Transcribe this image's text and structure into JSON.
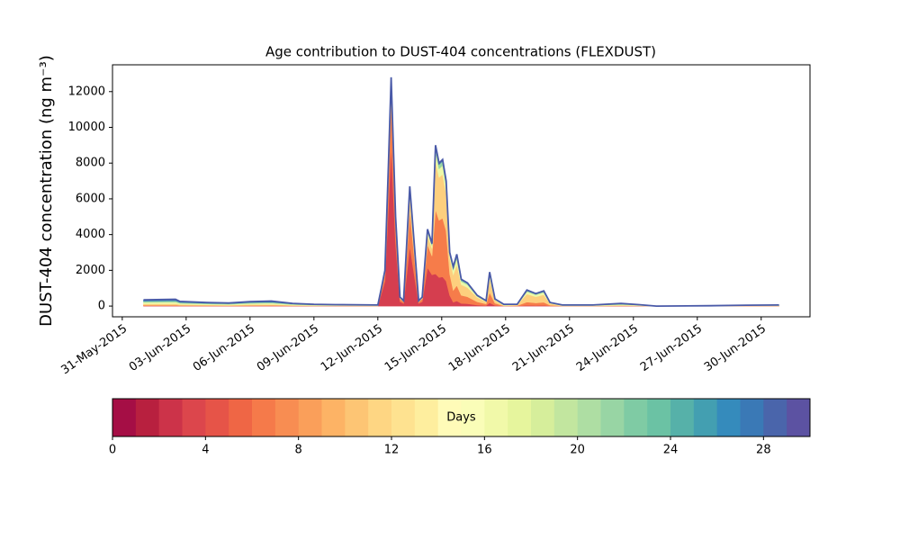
{
  "chart_data": {
    "type": "stacked_area",
    "title": "Age contribution to DUST-404 concentrations (FLEXDUST)",
    "y_label": "DUST-404 concentration (ng m⁻³)",
    "x": [
      "2015-06-01T00:00",
      "2015-06-02T12:00",
      "2015-06-02T17:00",
      "2015-06-04T00:00",
      "2015-06-05T00:00",
      "2015-06-06T00:00",
      "2015-06-07T00:00",
      "2015-06-08T00:00",
      "2015-06-09T00:00",
      "2015-06-10T00:00",
      "2015-06-12T00:00",
      "2015-06-12T04:00",
      "2015-06-12T08:00",
      "2015-06-12T12:00",
      "2015-06-12T15:00",
      "2015-06-12T20:00",
      "2015-06-13T01:00",
      "2015-06-13T05:00",
      "2015-06-13T08:00",
      "2015-06-13T12:00",
      "2015-06-13T17:00",
      "2015-06-13T22:00",
      "2015-06-14T02:00",
      "2015-06-14T08:00",
      "2015-06-14T13:00",
      "2015-06-14T17:00",
      "2015-06-14T21:00",
      "2015-06-15T01:00",
      "2015-06-15T05:00",
      "2015-06-15T09:00",
      "2015-06-15T13:00",
      "2015-06-15T17:00",
      "2015-06-15T22:00",
      "2015-06-16T05:00",
      "2015-06-16T16:00",
      "2015-06-17T02:00",
      "2015-06-17T06:00",
      "2015-06-17T12:00",
      "2015-06-17T22:00",
      "2015-06-18T13:00",
      "2015-06-19T00:00",
      "2015-06-19T10:00",
      "2015-06-19T19:00",
      "2015-06-20T02:00",
      "2015-06-20T16:00",
      "2015-06-22T02:00",
      "2015-06-23T10:00",
      "2015-06-24T06:00",
      "2015-06-25T02:00",
      "2015-06-27T14:00",
      "2015-06-29T07:00",
      "2015-06-30T20:00"
    ],
    "series": [
      {
        "color": "#d53e4f",
        "values": [
          18,
          19,
          13,
          10,
          8,
          12,
          14,
          8,
          5,
          4,
          3,
          700,
          1400,
          5600,
          8960,
          3500,
          250,
          150,
          1500,
          3350,
          1750,
          150,
          250,
          2150,
          1750,
          1800,
          1600,
          1640,
          1400,
          600,
          220,
          290,
          150,
          130,
          60,
          30,
          190,
          40,
          5,
          5,
          45,
          35,
          43,
          10,
          3,
          3,
          8,
          4,
          0,
          1,
          3,
          3
        ]
      },
      {
        "color": "#f67c4a",
        "values": [
          35,
          38,
          26,
          20,
          17,
          25,
          28,
          15,
          10,
          8,
          6,
          200,
          400,
          1600,
          2560,
          1000,
          150,
          90,
          900,
          2010,
          1050,
          90,
          150,
          1290,
          1050,
          3600,
          3200,
          3280,
          2800,
          1200,
          660,
          870,
          450,
          390,
          180,
          90,
          570,
          120,
          10,
          20,
          180,
          140,
          170,
          40,
          6,
          6,
          15,
          8,
          0,
          2,
          5,
          6
        ]
      },
      {
        "color": "#fdcf7e",
        "values": [
          70,
          76,
          52,
          40,
          34,
          50,
          56,
          30,
          20,
          16,
          12,
          60,
          120,
          480,
          768,
          300,
          60,
          36,
          360,
          804,
          420,
          36,
          60,
          516,
          420,
          2700,
          2400,
          2460,
          2100,
          900,
          880,
          1160,
          600,
          520,
          240,
          120,
          760,
          160,
          20,
          50,
          450,
          350,
          425,
          100,
          12,
          12,
          30,
          16,
          0,
          4,
          10,
          12
        ]
      },
      {
        "color": "#eef8a8",
        "values": [
          87,
          95,
          65,
          50,
          43,
          63,
          70,
          37,
          25,
          20,
          15,
          20,
          40,
          160,
          256,
          100,
          25,
          15,
          150,
          335,
          175,
          15,
          25,
          215,
          175,
          540,
          480,
          492,
          420,
          180,
          264,
          348,
          180,
          156,
          72,
          36,
          228,
          48,
          25,
          15,
          135,
          105,
          127,
          30,
          15,
          15,
          37,
          20,
          0,
          5,
          12,
          15
        ]
      },
      {
        "color": "#98d5a4",
        "values": [
          70,
          76,
          52,
          40,
          34,
          50,
          56,
          30,
          20,
          16,
          12,
          10,
          20,
          80,
          128,
          50,
          10,
          6,
          60,
          134,
          70,
          6,
          10,
          86,
          70,
          270,
          240,
          246,
          210,
          90,
          110,
          145,
          75,
          65,
          30,
          15,
          95,
          20,
          20,
          6,
          54,
          42,
          51,
          12,
          12,
          12,
          30,
          16,
          0,
          4,
          10,
          12
        ]
      },
      {
        "color": "#3a7eb8",
        "values": [
          70,
          76,
          52,
          40,
          34,
          50,
          56,
          30,
          20,
          16,
          12,
          10,
          20,
          80,
          128,
          50,
          5,
          3,
          30,
          67,
          35,
          3,
          5,
          43,
          35,
          90,
          80,
          82,
          70,
          30,
          66,
          87,
          45,
          39,
          18,
          9,
          57,
          12,
          20,
          4,
          36,
          28,
          34,
          8,
          12,
          12,
          30,
          16,
          0,
          4,
          10,
          12
        ]
      }
    ],
    "outline_color": "#4a5aa8",
    "xlim": [
      "2015-05-30T13:00",
      "2015-07-02T07:00"
    ],
    "xticks": [
      {
        "value": "2015-05-31",
        "label": "31-May-2015"
      },
      {
        "value": "2015-06-03",
        "label": "03-Jun-2015"
      },
      {
        "value": "2015-06-06",
        "label": "06-Jun-2015"
      },
      {
        "value": "2015-06-09",
        "label": "09-Jun-2015"
      },
      {
        "value": "2015-06-12",
        "label": "12-Jun-2015"
      },
      {
        "value": "2015-06-15",
        "label": "15-Jun-2015"
      },
      {
        "value": "2015-06-18",
        "label": "18-Jun-2015"
      },
      {
        "value": "2015-06-21",
        "label": "21-Jun-2015"
      },
      {
        "value": "2015-06-24",
        "label": "24-Jun-2015"
      },
      {
        "value": "2015-06-27",
        "label": "27-Jun-2015"
      },
      {
        "value": "2015-06-30",
        "label": "30-Jun-2015"
      }
    ],
    "ylim": [
      -600,
      13500
    ],
    "yticks": [
      0,
      2000,
      4000,
      6000,
      8000,
      10000,
      12000
    ],
    "grid": false,
    "colorbar": {
      "label": "Days",
      "lim": [
        0,
        30
      ],
      "ticks": [
        0,
        4,
        8,
        12,
        16,
        20,
        24,
        28
      ],
      "colors": [
        "#a50e45",
        "#b8203f",
        "#cc3349",
        "#dc464c",
        "#e65448",
        "#ef6645",
        "#f57a4a",
        "#f88d52",
        "#fa9f5a",
        "#fdb365",
        "#fdc574",
        "#fed683",
        "#fee290",
        "#feee9e",
        "#fffbb8",
        "#fafdb8",
        "#f1f9a9",
        "#e6f59d",
        "#d6ee9b",
        "#c2e69f",
        "#aedea3",
        "#98d5a4",
        "#7fcba4",
        "#6bc2a4",
        "#56b1a9",
        "#439fb1",
        "#358bbc",
        "#3a79b6",
        "#4a65ab",
        "#5c52a2"
      ]
    }
  }
}
